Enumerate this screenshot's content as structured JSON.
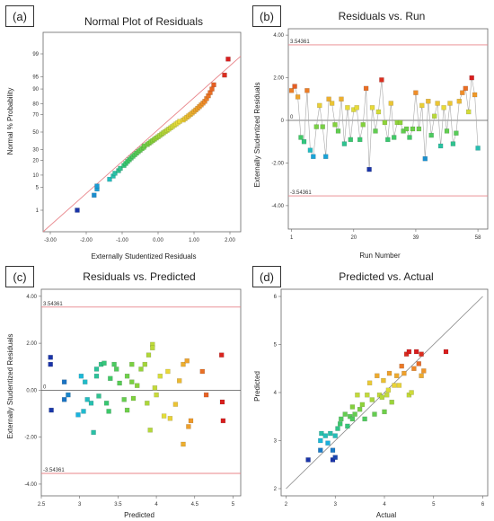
{
  "chart_data": [
    {
      "type": "scatter",
      "tag": "(a)",
      "title": "Normal Plot of Residuals",
      "xlabel": "Externally Studentized Residuals",
      "ylabel": "Normal % Probability",
      "xlim": [
        -3.2,
        2.3
      ],
      "xticks": [
        "-3.00",
        "-2.00",
        "-1.00",
        "0.00",
        "1.00",
        "2.00"
      ],
      "xtick_values": [
        -3,
        -2,
        -1,
        0,
        1,
        2
      ],
      "yticks": [
        "1",
        "5",
        "10",
        "20",
        "30",
        "50",
        "70",
        "80",
        "90",
        "95",
        "99"
      ],
      "ytick_values": [
        1,
        5,
        10,
        20,
        30,
        50,
        70,
        80,
        90,
        95,
        99
      ],
      "grid": false,
      "legend": "none",
      "reference_line": {
        "from": [
          -3.2,
          0.15
        ],
        "to": [
          2.3,
          98.8
        ]
      },
      "points": [
        [
          -2.25,
          1.0
        ],
        [
          -1.78,
          3.0
        ],
        [
          -1.7,
          4.5
        ],
        [
          -1.7,
          5.4
        ],
        [
          -1.35,
          8.0
        ],
        [
          -1.25,
          9.5
        ],
        [
          -1.2,
          11.0
        ],
        [
          -1.1,
          12.5
        ],
        [
          -1.05,
          14.0
        ],
        [
          -0.95,
          16.0
        ],
        [
          -0.9,
          17.5
        ],
        [
          -0.85,
          19.0
        ],
        [
          -0.8,
          20.5
        ],
        [
          -0.75,
          22.0
        ],
        [
          -0.7,
          23.5
        ],
        [
          -0.65,
          25.0
        ],
        [
          -0.6,
          26.5
        ],
        [
          -0.55,
          28.0
        ],
        [
          -0.5,
          29.5
        ],
        [
          -0.45,
          31.0
        ],
        [
          -0.4,
          32.5
        ],
        [
          -0.38,
          34.0
        ],
        [
          -0.3,
          35.5
        ],
        [
          -0.25,
          37.0
        ],
        [
          -0.2,
          38.5
        ],
        [
          -0.15,
          40.0
        ],
        [
          -0.1,
          41.5
        ],
        [
          -0.05,
          43.0
        ],
        [
          0.0,
          44.5
        ],
        [
          0.05,
          46.0
        ],
        [
          0.1,
          47.5
        ],
        [
          0.15,
          49.0
        ],
        [
          0.2,
          50.5
        ],
        [
          0.25,
          52.0
        ],
        [
          0.3,
          53.5
        ],
        [
          0.35,
          55.0
        ],
        [
          0.4,
          56.5
        ],
        [
          0.45,
          58.0
        ],
        [
          0.5,
          59.5
        ],
        [
          0.55,
          61.0
        ],
        [
          0.6,
          62.5
        ],
        [
          0.7,
          64.0
        ],
        [
          0.75,
          65.5
        ],
        [
          0.8,
          67.0
        ],
        [
          0.85,
          68.5
        ],
        [
          0.9,
          70.0
        ],
        [
          0.95,
          71.5
        ],
        [
          1.0,
          73.0
        ],
        [
          1.05,
          74.5
        ],
        [
          1.1,
          76.0
        ],
        [
          1.15,
          77.5
        ],
        [
          1.2,
          79.0
        ],
        [
          1.25,
          80.5
        ],
        [
          1.3,
          82.0
        ],
        [
          1.35,
          84.0
        ],
        [
          1.4,
          86.0
        ],
        [
          1.45,
          88.0
        ],
        [
          1.5,
          90.0
        ],
        [
          1.55,
          92.0
        ],
        [
          1.85,
          95.5
        ],
        [
          1.95,
          98.5
        ]
      ]
    },
    {
      "type": "scatter",
      "tag": "(b)",
      "title": "Residuals vs. Run",
      "xlabel": "Run Number",
      "ylabel": "Externally Studentized Residuals",
      "xlim": [
        0,
        61
      ],
      "ylim": [
        -5.1,
        4.3
      ],
      "xticks": [
        "1",
        "20",
        "39",
        "58"
      ],
      "xtick_values": [
        1,
        20,
        39,
        58
      ],
      "yticks": [
        "-4.00",
        "-2.00",
        "0",
        "2.00",
        "4.00"
      ],
      "ytick_values": [
        -4,
        -2,
        0,
        2,
        4
      ],
      "grid": false,
      "legend": "none",
      "reference_lines": [
        {
          "value": 3.54361,
          "label": "3.54361"
        },
        {
          "value": -3.54361,
          "label": "-3.54361"
        },
        {
          "value": 0,
          "label": "0"
        }
      ],
      "values": [
        1.4,
        1.6,
        1.1,
        -0.8,
        -1.0,
        1.4,
        -1.4,
        -1.7,
        -0.3,
        0.7,
        -0.3,
        -1.7,
        1.0,
        0.8,
        -0.2,
        -0.5,
        1.0,
        -1.1,
        0.6,
        -0.9,
        0.5,
        0.6,
        -0.9,
        -0.2,
        1.5,
        -2.3,
        0.6,
        -0.5,
        0.4,
        1.9,
        -0.1,
        -0.9,
        0.8,
        -0.8,
        -0.1,
        -0.1,
        -0.5,
        -0.4,
        -0.8,
        -0.4,
        1.3,
        -0.4,
        0.7,
        -1.8,
        0.9,
        -0.7,
        0.2,
        0.8,
        -1.2,
        0.6,
        -0.5,
        0.8,
        -1.1,
        -0.6,
        0.9,
        1.3,
        1.5,
        0.4,
        2.0,
        1.2,
        -1.3
      ]
    },
    {
      "type": "scatter",
      "tag": "(c)",
      "title": "Residuals vs. Predicted",
      "xlabel": "Predicted",
      "ylabel": "Externally Studentized Residuals",
      "xlim": [
        2.5,
        5.1
      ],
      "ylim": [
        -4.5,
        4.3
      ],
      "xticks": [
        "2.5",
        "3",
        "3.5",
        "4",
        "4.5",
        "5"
      ],
      "xtick_values": [
        2.5,
        3,
        3.5,
        4,
        4.5,
        5
      ],
      "yticks": [
        "-4.00",
        "-2.00",
        "0.00",
        "2.00",
        "4.00"
      ],
      "ytick_values": [
        -4,
        -2,
        0,
        2,
        4
      ],
      "grid": false,
      "legend": "none",
      "reference_lines": [
        {
          "value": 3.54361,
          "label": "3.54361"
        },
        {
          "value": -3.54361,
          "label": "-3.54361"
        },
        {
          "value": 0,
          "label": "0"
        }
      ],
      "points": [
        [
          2.62,
          1.4
        ],
        [
          2.62,
          1.1
        ],
        [
          2.63,
          -0.85
        ],
        [
          2.8,
          0.35
        ],
        [
          2.8,
          -0.4
        ],
        [
          2.85,
          -0.2
        ],
        [
          2.98,
          -1.05
        ],
        [
          3.02,
          0.6
        ],
        [
          3.05,
          -0.9
        ],
        [
          3.07,
          0.35
        ],
        [
          3.1,
          -0.4
        ],
        [
          3.15,
          -0.55
        ],
        [
          3.18,
          -1.8
        ],
        [
          3.22,
          0.6
        ],
        [
          3.22,
          0.9
        ],
        [
          3.25,
          -0.25
        ],
        [
          3.28,
          1.1
        ],
        [
          3.32,
          1.15
        ],
        [
          3.35,
          -0.55
        ],
        [
          3.38,
          -0.9
        ],
        [
          3.4,
          0.5
        ],
        [
          3.45,
          1.1
        ],
        [
          3.48,
          0.9
        ],
        [
          3.52,
          0.3
        ],
        [
          3.58,
          -0.4
        ],
        [
          3.62,
          0.6
        ],
        [
          3.62,
          -0.85
        ],
        [
          3.68,
          1.1
        ],
        [
          3.68,
          0.35
        ],
        [
          3.7,
          -0.35
        ],
        [
          3.75,
          0.2
        ],
        [
          3.8,
          0.9
        ],
        [
          3.85,
          1.1
        ],
        [
          3.88,
          -0.55
        ],
        [
          3.9,
          1.5
        ],
        [
          3.92,
          -1.7
        ],
        [
          3.95,
          1.95
        ],
        [
          3.95,
          1.8
        ],
        [
          3.98,
          0.1
        ],
        [
          4.0,
          -0.2
        ],
        [
          4.05,
          0.6
        ],
        [
          4.1,
          -1.1
        ],
        [
          4.15,
          0.8
        ],
        [
          4.18,
          -1.2
        ],
        [
          4.25,
          -0.6
        ],
        [
          4.3,
          0.4
        ],
        [
          4.35,
          1.1
        ],
        [
          4.35,
          -2.3
        ],
        [
          4.4,
          1.25
        ],
        [
          4.42,
          -1.55
        ],
        [
          4.45,
          -1.3
        ],
        [
          4.6,
          0.8
        ],
        [
          4.65,
          -0.2
        ],
        [
          4.85,
          1.5
        ],
        [
          4.86,
          -0.5
        ],
        [
          4.87,
          -1.3
        ]
      ]
    },
    {
      "type": "scatter",
      "tag": "(d)",
      "title": "Predicted vs. Actual",
      "xlabel": "Actual",
      "ylabel": "Predicted",
      "xlim": [
        1.9,
        6.1
      ],
      "ylim": [
        1.85,
        6.15
      ],
      "xticks": [
        "2",
        "3",
        "4",
        "5",
        "6"
      ],
      "xtick_values": [
        2,
        3,
        4,
        5,
        6
      ],
      "yticks": [
        "2",
        "3",
        "4",
        "5",
        "6"
      ],
      "ytick_values": [
        2,
        3,
        4,
        5,
        6
      ],
      "grid": false,
      "legend": "none",
      "reference_line": {
        "from": [
          2,
          2
        ],
        "to": [
          6,
          6
        ]
      },
      "points": [
        [
          2.45,
          2.6
        ],
        [
          2.7,
          2.8
        ],
        [
          2.7,
          3.0
        ],
        [
          2.72,
          3.15
        ],
        [
          2.8,
          3.1
        ],
        [
          2.85,
          2.95
        ],
        [
          2.9,
          3.15
        ],
        [
          2.95,
          2.8
        ],
        [
          2.95,
          2.6
        ],
        [
          3.0,
          2.65
        ],
        [
          3.0,
          3.1
        ],
        [
          3.05,
          3.25
        ],
        [
          3.1,
          3.35
        ],
        [
          3.12,
          3.45
        ],
        [
          3.2,
          3.55
        ],
        [
          3.25,
          3.3
        ],
        [
          3.3,
          3.5
        ],
        [
          3.35,
          3.7
        ],
        [
          3.35,
          3.45
        ],
        [
          3.4,
          3.55
        ],
        [
          3.45,
          3.95
        ],
        [
          3.5,
          3.65
        ],
        [
          3.55,
          3.75
        ],
        [
          3.6,
          3.45
        ],
        [
          3.65,
          3.95
        ],
        [
          3.7,
          4.2
        ],
        [
          3.75,
          3.85
        ],
        [
          3.8,
          3.55
        ],
        [
          3.85,
          4.35
        ],
        [
          3.9,
          3.95
        ],
        [
          3.95,
          3.9
        ],
        [
          3.98,
          4.25
        ],
        [
          4.0,
          3.6
        ],
        [
          4.05,
          3.95
        ],
        [
          4.08,
          4.05
        ],
        [
          4.1,
          4.4
        ],
        [
          4.15,
          3.8
        ],
        [
          4.2,
          4.15
        ],
        [
          4.25,
          4.35
        ],
        [
          4.3,
          4.15
        ],
        [
          4.35,
          4.55
        ],
        [
          4.4,
          4.4
        ],
        [
          4.45,
          4.8
        ],
        [
          4.5,
          4.85
        ],
        [
          4.5,
          3.95
        ],
        [
          4.55,
          4.0
        ],
        [
          4.6,
          4.5
        ],
        [
          4.65,
          4.85
        ],
        [
          4.7,
          4.6
        ],
        [
          4.75,
          4.35
        ],
        [
          4.75,
          4.8
        ],
        [
          4.8,
          4.45
        ],
        [
          5.25,
          4.85
        ]
      ]
    }
  ],
  "colors": {
    "reference_line": "#e8848a",
    "zero_line": "#555555",
    "axis": "#666666",
    "connector": "#a8a8a8",
    "gradient": [
      "#1a34a8",
      "#1ab8e0",
      "#3ac86a",
      "#88d23a",
      "#e8de3a",
      "#f09028",
      "#d81e1e"
    ]
  }
}
